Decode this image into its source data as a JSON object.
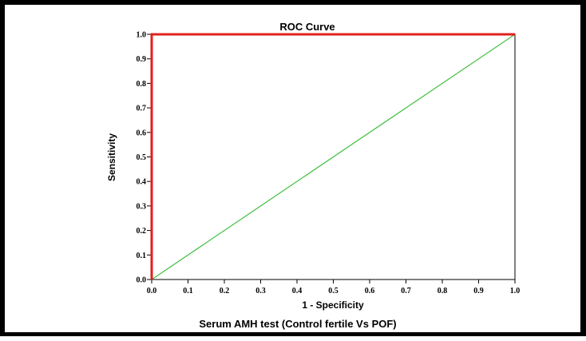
{
  "caption": "Serum AMH  test (Control fertile Vs POF)",
  "chart_data": {
    "type": "line",
    "title": "ROC Curve",
    "xlabel": "1 - Specificity",
    "ylabel": "Sensitivity",
    "xlim": [
      0,
      1
    ],
    "ylim": [
      0,
      1
    ],
    "xticks": [
      "0.0",
      "0.1",
      "0.2",
      "0.3",
      "0.4",
      "0.5",
      "0.6",
      "0.7",
      "0.8",
      "0.9",
      "1.0"
    ],
    "yticks": [
      "0.0",
      "0.1",
      "0.2",
      "0.3",
      "0.4",
      "0.5",
      "0.6",
      "0.7",
      "0.8",
      "0.9",
      "1.0"
    ],
    "grid": false,
    "series": [
      {
        "color": "#e0201c",
        "x": [
          0.0,
          0.0,
          1.0
        ],
        "y": [
          0.0,
          1.0,
          1.0
        ]
      },
      {
        "color": "#3fbf3f",
        "x": [
          0.0,
          1.0
        ],
        "y": [
          0.0,
          1.0
        ]
      }
    ]
  }
}
